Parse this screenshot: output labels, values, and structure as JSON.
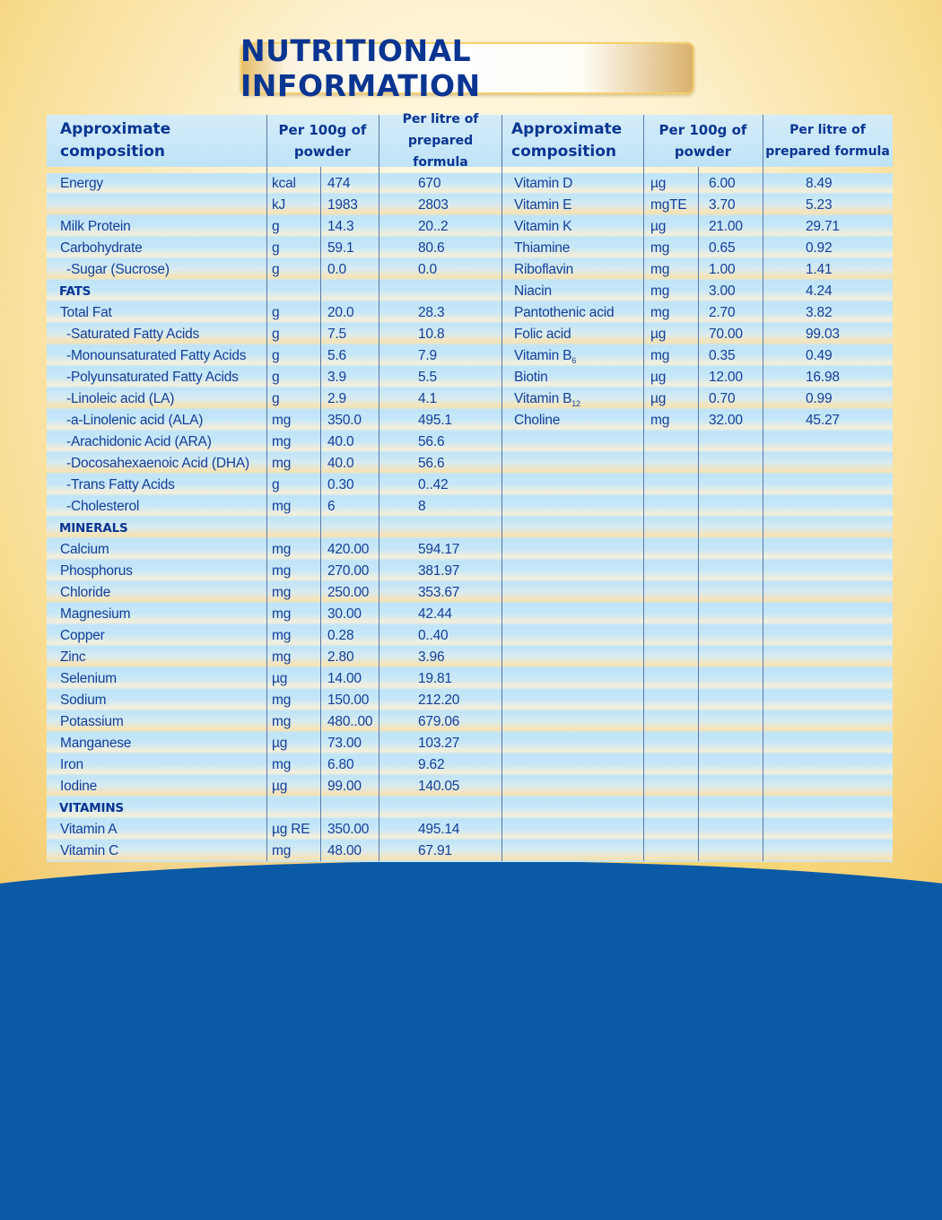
{
  "title": "NUTRITIONAL INFORMATION",
  "colors": {
    "heading": "#0a3591",
    "text": "#143f96",
    "bottom_band": "#0a5aa6",
    "row_blue": "#bfe4f8"
  },
  "headers": {
    "left": {
      "composition": "Approximate composition",
      "per_100g_line1": "Per 100g of",
      "per_100g_line2": "powder",
      "per_litre_line1": "Per litre of",
      "per_litre_line2": "prepared formula"
    },
    "right": {
      "composition": "Approximate composition",
      "per_100g_line1": "Per 100g of",
      "per_100g_line2": "powder",
      "per_litre_line1": "Per litre of",
      "per_litre_line2": "prepared formula"
    }
  },
  "left_rows": [
    {
      "name": "Energy",
      "unit": "kcal",
      "per100g": "474",
      "perLitre": "670"
    },
    {
      "name": "",
      "unit": "kJ",
      "per100g": "1983",
      "perLitre": "2803"
    },
    {
      "name": "Milk Protein",
      "unit": "g",
      "per100g": "14.3",
      "perLitre": "20..2"
    },
    {
      "name": "Carbohydrate",
      "unit": "g",
      "per100g": "59.1",
      "perLitre": "80.6"
    },
    {
      "name": " -Sugar (Sucrose)",
      "unit": "g",
      "per100g": "0.0",
      "perLitre": "0.0"
    },
    {
      "name": "FATS",
      "section": true,
      "unit": "",
      "per100g": "",
      "perLitre": ""
    },
    {
      "name": "Total Fat",
      "unit": "g",
      "per100g": "20.0",
      "perLitre": "28.3"
    },
    {
      "name": " -Saturated Fatty Acids",
      "unit": "g",
      "per100g": "7.5",
      "perLitre": "10.8"
    },
    {
      "name": " -Monounsaturated Fatty Acids",
      "unit": "g",
      "per100g": "5.6",
      "perLitre": "7.9"
    },
    {
      "name": " -Polyunsaturated Fatty Acids",
      "unit": "g",
      "per100g": "3.9",
      "perLitre": "5.5"
    },
    {
      "name": " -Linoleic acid (LA)",
      "unit": "g",
      "per100g": "2.9",
      "perLitre": "4.1"
    },
    {
      "name": " -a-Linolenic acid (ALA)",
      "unit": "mg",
      "per100g": "350.0",
      "perLitre": "495.1"
    },
    {
      "name": " -Arachidonic Acid (ARA)",
      "unit": "mg",
      "per100g": "40.0",
      "perLitre": "56.6"
    },
    {
      "name": " -Docosahexaenoic Acid (DHA)",
      "unit": "mg",
      "per100g": "40.0",
      "perLitre": "56.6"
    },
    {
      "name": " -Trans Fatty Acids",
      "unit": "g",
      "per100g": "0.30",
      "perLitre": "0..42"
    },
    {
      "name": " -Cholesterol",
      "unit": "mg",
      "per100g": "6",
      "perLitre": "8"
    },
    {
      "name": "MINERALS",
      "section": true,
      "unit": "",
      "per100g": "",
      "perLitre": ""
    },
    {
      "name": "Calcium",
      "unit": "mg",
      "per100g": "420.00",
      "perLitre": "594.17"
    },
    {
      "name": "Phosphorus",
      "unit": "mg",
      "per100g": "270.00",
      "perLitre": "381.97"
    },
    {
      "name": "Chloride",
      "unit": "mg",
      "per100g": "250.00",
      "perLitre": "353.67"
    },
    {
      "name": "Magnesium",
      "unit": "mg",
      "per100g": "30.00",
      "perLitre": "42.44"
    },
    {
      "name": "Copper",
      "unit": "mg",
      "per100g": "0.28",
      "perLitre": "0..40"
    },
    {
      "name": "Zinc",
      "unit": "mg",
      "per100g": "2.80",
      "perLitre": "3.96"
    },
    {
      "name": "Selenium",
      "unit": "µg",
      "per100g": "14.00",
      "perLitre": "19.81"
    },
    {
      "name": "Sodium",
      "unit": "mg",
      "per100g": "150.00",
      "perLitre": "212.20"
    },
    {
      "name": "Potassium",
      "unit": "mg",
      "per100g": "480..00",
      "perLitre": "679.06"
    },
    {
      "name": "Manganese",
      "unit": "µg",
      "per100g": "73.00",
      "perLitre": "103.27"
    },
    {
      "name": "Iron",
      "unit": "mg",
      "per100g": "6.80",
      "perLitre": "9.62"
    },
    {
      "name": "Iodine",
      "unit": "µg",
      "per100g": "99.00",
      "perLitre": "140.05"
    },
    {
      "name": "VITAMINS",
      "section": true,
      "unit": "",
      "per100g": "",
      "perLitre": ""
    },
    {
      "name": "Vitamin A",
      "unit": "µg RE",
      "per100g": "350.00",
      "perLitre": "495.14"
    },
    {
      "name": "Vitamin C",
      "unit": "mg",
      "per100g": "48.00",
      "perLitre": "67.91"
    }
  ],
  "right_rows": [
    {
      "name": "Vitamin D",
      "unit": "µg",
      "per100g": "6.00",
      "perLitre": "8.49"
    },
    {
      "name": "Vitamin E",
      "unit": "mgTE",
      "per100g": "3.70",
      "perLitre": "5.23"
    },
    {
      "name": "Vitamin K",
      "unit": "µg",
      "per100g": "21.00",
      "perLitre": "29.71"
    },
    {
      "name": "Thiamine",
      "unit": "mg",
      "per100g": "0.65",
      "perLitre": "0.92"
    },
    {
      "name": "Riboflavin",
      "unit": "mg",
      "per100g": "1.00",
      "perLitre": "1.41"
    },
    {
      "name": "Niacin",
      "unit": "mg",
      "per100g": "3.00",
      "perLitre": "4.24"
    },
    {
      "name": "Pantothenic acid",
      "unit": "mg",
      "per100g": "2.70",
      "perLitre": "3.82"
    },
    {
      "name": "Folic acid",
      "unit": "µg",
      "per100g": "70.00",
      "perLitre": "99.03"
    },
    {
      "name": "Vitamin B",
      "sub": "6",
      "unit": "mg",
      "per100g": "0.35",
      "perLitre": "0.49"
    },
    {
      "name": "Biotin",
      "unit": "µg",
      "per100g": "12.00",
      "perLitre": "16.98"
    },
    {
      "name": "Vitamin B",
      "sub": "12",
      "unit": "µg",
      "per100g": "0.70",
      "perLitre": "0.99"
    },
    {
      "name": "Choline",
      "unit": "mg",
      "per100g": "32.00",
      "perLitre": "45.27"
    }
  ]
}
